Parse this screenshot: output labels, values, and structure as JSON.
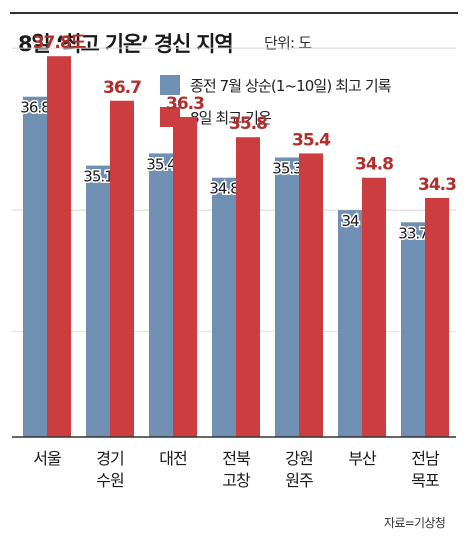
{
  "header": {
    "title": "8일 ‘최고 기온’ 경신 지역",
    "unit": "단위: 도"
  },
  "source": "자료=기상청",
  "colors": {
    "series_1": "#6f8fb3",
    "series_2": "#cc3d3f",
    "label_2": "#b02f2c"
  },
  "chart_data": {
    "type": "bar",
    "categories": [
      "서울",
      "경기\n수원",
      "대전",
      "전북\n고창",
      "강원\n원주",
      "부산",
      "전남\n목포"
    ],
    "series": [
      {
        "name": "종전 7월 상순(1~10일) 최고 기록",
        "values": [
          36.8,
          35.1,
          35.4,
          34.8,
          35.3,
          34,
          33.7
        ],
        "labels": [
          "36.8",
          "35.1",
          "35.4",
          "34.8",
          "35.3",
          "34",
          "33.7"
        ]
      },
      {
        "name": "8일 최고 기온",
        "values": [
          37.8,
          36.7,
          36.3,
          35.8,
          35.4,
          34.8,
          34.3
        ],
        "labels": [
          "37.8도",
          "36.7",
          "36.3",
          "35.8",
          "35.4",
          "34.8",
          "34.3"
        ]
      }
    ],
    "ylim": [
      28.4,
      38.2
    ],
    "grid": true,
    "legend": "top-center"
  }
}
